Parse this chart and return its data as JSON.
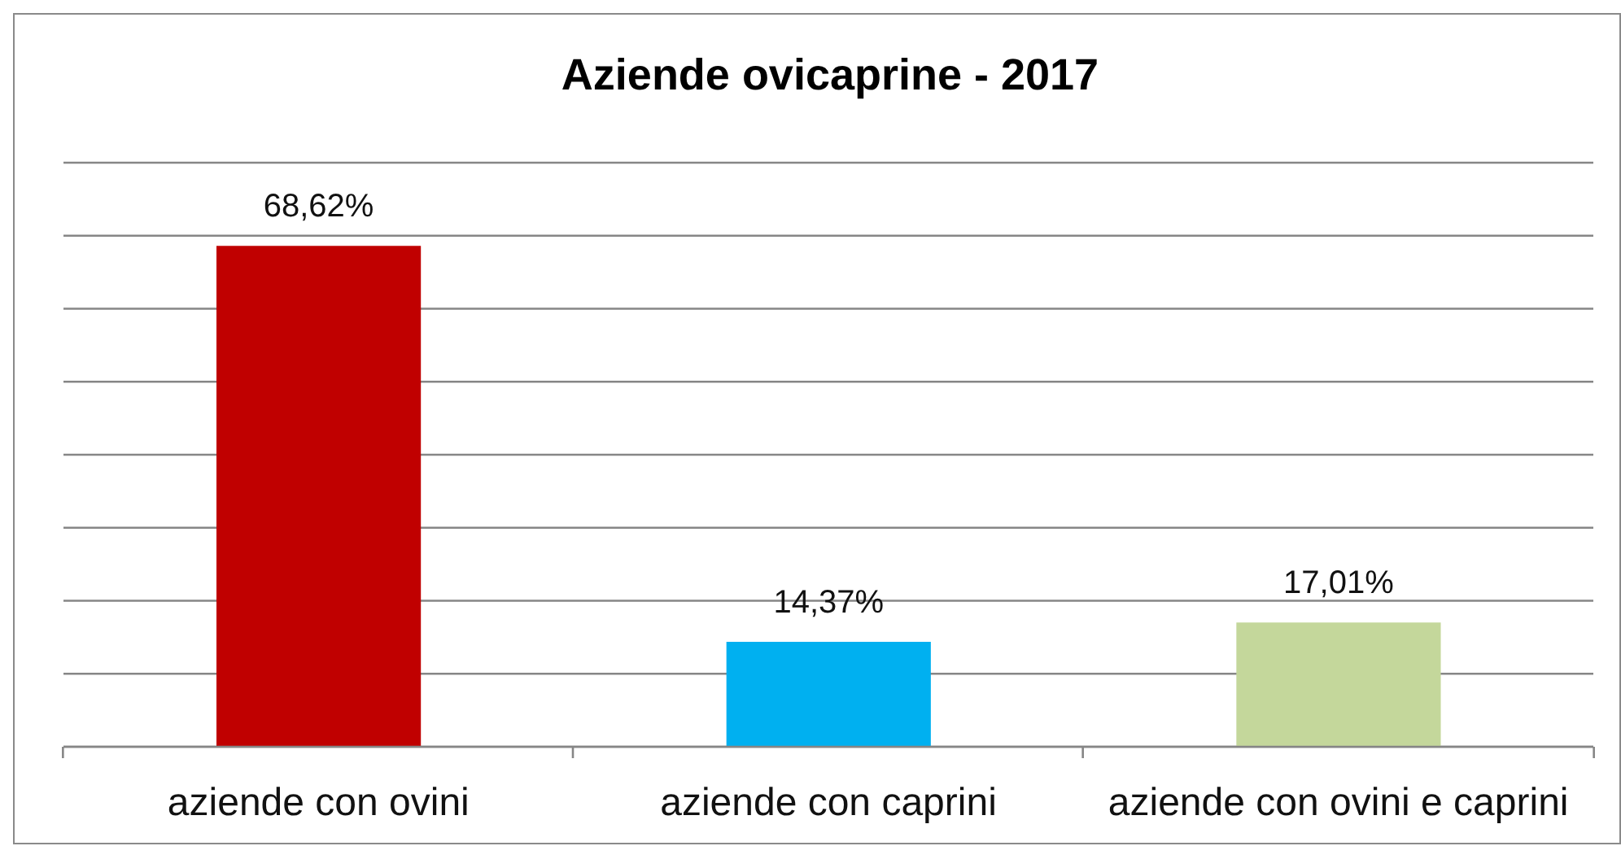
{
  "chart_data": {
    "type": "bar",
    "title": "Aziende ovicaprine - 2017",
    "categories": [
      "aziende con ovini",
      "aziende con caprini",
      "aziende con ovini e caprini"
    ],
    "values": [
      68.62,
      14.37,
      17.01
    ],
    "colors": [
      "#c00000",
      "#00b0f0",
      "#c4d79b"
    ],
    "value_labels": [
      "68,62%",
      "14,37%",
      "17,01%"
    ],
    "ylim": [
      0,
      80
    ],
    "tick_labels": "x",
    "grid": "y"
  }
}
